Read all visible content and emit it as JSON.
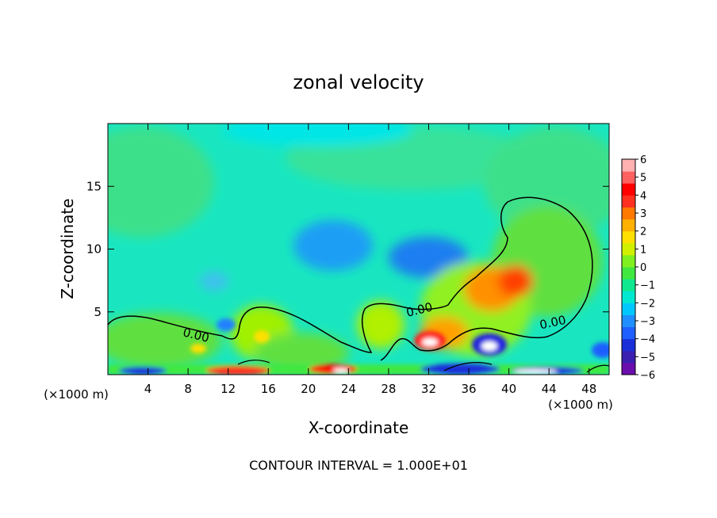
{
  "chart_data": {
    "type": "heatmap",
    "title": "zonal velocity",
    "xlabel": "X-coordinate",
    "ylabel": "Z-coordinate",
    "x_unit": "(×1000 m)",
    "y_unit": "(×1000 m)",
    "x_ticks": [
      4,
      8,
      12,
      16,
      20,
      24,
      28,
      32,
      36,
      40,
      44,
      48
    ],
    "y_ticks": [
      5,
      10,
      15
    ],
    "xlim": [
      0,
      50
    ],
    "ylim": [
      0,
      20
    ],
    "footer": "CONTOUR INTERVAL = 1.000E+01",
    "contour_label": "0.00",
    "colorbar": {
      "ticks": [
        "6",
        "5",
        "4",
        "3",
        "2",
        "1",
        "0",
        "−1",
        "−2",
        "−3",
        "−4",
        "−5",
        "−6"
      ],
      "range": [
        -6,
        6
      ],
      "colors": [
        "#6a0dad",
        "#3a1fb0",
        "#1a2fd8",
        "#1f5fff",
        "#1f8fff",
        "#00c8ff",
        "#00e8d0",
        "#10e890",
        "#40e840",
        "#80f020",
        "#d0f000",
        "#ffe000",
        "#ffb000",
        "#ff7800",
        "#ff3020",
        "#ff0000",
        "#ff6060",
        "#ffb0b0"
      ]
    },
    "field_features": [
      {
        "region": "background (upper atmosphere)",
        "value": -1.5
      },
      {
        "region": "jet x≈19-24, z≈9-12",
        "value": -3
      },
      {
        "region": "jet x≈31-34, z≈8-11",
        "value": -3.5
      },
      {
        "region": "positive plume x≈36-42, z≈5-9",
        "value": 3
      },
      {
        "region": "positive lobe x≈31-33, z≈2-3",
        "value": 5
      },
      {
        "region": "negative core x≈37-39, z≈2-3",
        "value": -5
      },
      {
        "region": "surface layer z<1",
        "value": "mixed ±6"
      }
    ]
  }
}
